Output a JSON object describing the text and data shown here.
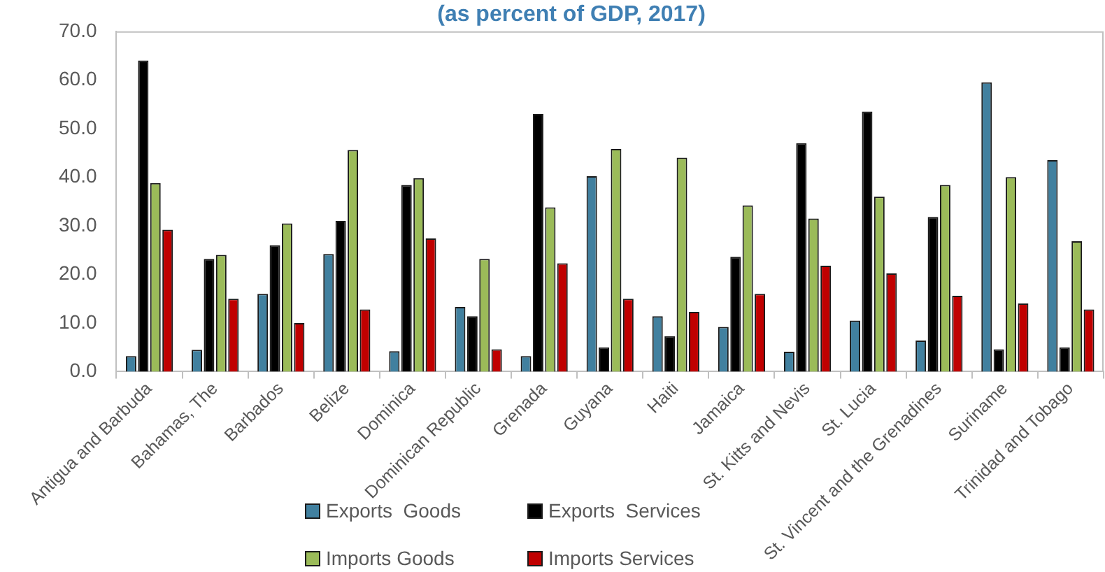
{
  "chart_data": {
    "type": "bar",
    "title": "(as percent of GDP, 2017)",
    "categories": [
      "Antigua and Barbuda",
      "Bahamas, The",
      "Barbados",
      "Belize",
      "Dominica",
      "Dominican Republic",
      "Grenada",
      "Guyana",
      "Haiti",
      "Jamaica",
      "St. Kitts and Nevis",
      "St. Lucia",
      "St. Vincent and the Grenadines",
      "Suriname",
      "Trinidad and Tobago"
    ],
    "series": [
      {
        "name": "Exports  Goods",
        "color": "#41809f",
        "values": [
          3.2,
          4.5,
          16.0,
          24.2,
          4.2,
          13.3,
          3.2,
          40.2,
          11.4,
          9.2,
          4.1,
          10.5,
          6.4,
          59.5,
          43.5
        ]
      },
      {
        "name": "Exports  Services",
        "color": "#000000",
        "values": [
          64.0,
          23.2,
          26.0,
          31.0,
          38.4,
          11.4,
          53.0,
          5.0,
          7.3,
          23.6,
          47.0,
          53.5,
          31.8,
          4.6,
          5.0
        ]
      },
      {
        "name": "Imports Goods",
        "color": "#9bbb59",
        "values": [
          38.8,
          24.0,
          30.5,
          45.6,
          39.8,
          23.2,
          33.8,
          45.8,
          44.0,
          34.2,
          31.5,
          36.0,
          38.4,
          40.0,
          26.8
        ]
      },
      {
        "name": "Imports Services",
        "color": "#c00000",
        "values": [
          29.2,
          15.0,
          10.0,
          12.8,
          27.4,
          4.6,
          22.3,
          15.0,
          12.3,
          16.0,
          21.8,
          20.2,
          15.6,
          14.0,
          12.8
        ]
      }
    ],
    "ylim": [
      0,
      70
    ],
    "yticks": [
      {
        "value": 0,
        "label": "0.0"
      },
      {
        "value": 10,
        "label": "10.0"
      },
      {
        "value": 20,
        "label": "20.0"
      },
      {
        "value": 30,
        "label": "30.0"
      },
      {
        "value": 40,
        "label": "40.0"
      },
      {
        "value": 50,
        "label": "50.0"
      },
      {
        "value": 60,
        "label": "60.0"
      },
      {
        "value": 70,
        "label": "70.0"
      }
    ],
    "legend": "bottom"
  }
}
